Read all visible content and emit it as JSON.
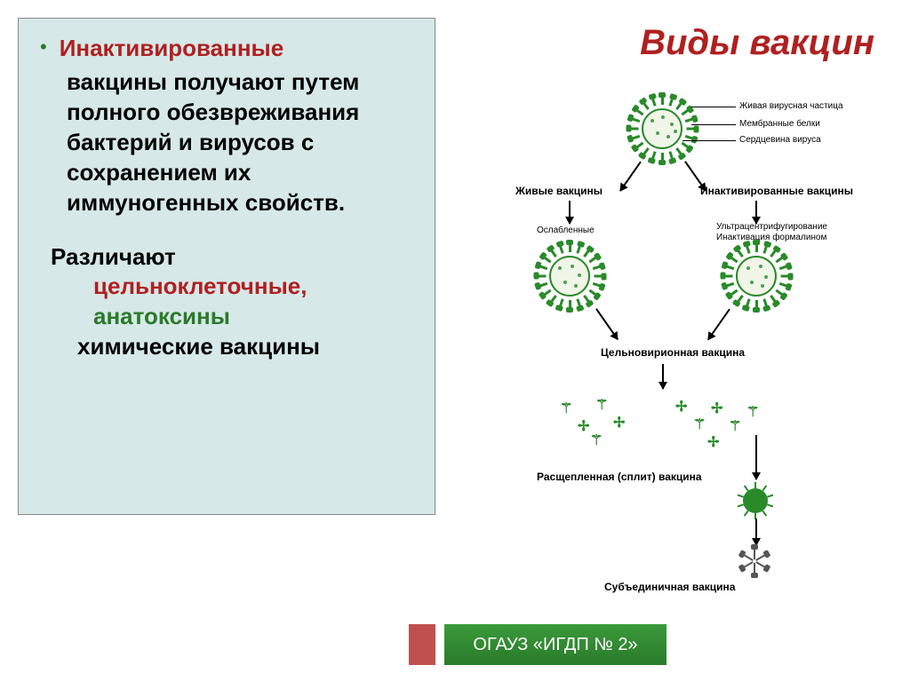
{
  "title": "Виды вакцин",
  "left": {
    "bullet_heading": "Инактивированные",
    "body": "вакцины получают путем полного обезвреживания бактерий и вирусов с сохранением их иммуногенных свойств.",
    "sub_heading": "Различают",
    "items": {
      "a": "цельноклеточные,",
      "b": "анатоксины",
      "c": "химические вакцины"
    }
  },
  "colors": {
    "panel_bg": "#d6e8e8",
    "red": "#b02020",
    "green_dark": "#2a7a2a",
    "green": "#2a8a2a",
    "virus_fill": "#f0f5e8",
    "footer_top": "#3a9a3a",
    "footer_accent": "#c0504d"
  },
  "diagram": {
    "top_labels": {
      "l1": "Живая вирусная частица",
      "l2": "Мембранные белки",
      "l3": "Сердцевина вируса"
    },
    "branches": {
      "left": "Живые вакцины",
      "right": "Инактивированные вакцины",
      "left_sub": "Ослабленные",
      "right_sub1": "Ультрацентрифугирование",
      "right_sub2": "Инактивация формалином"
    },
    "levels": {
      "whole": "Цельновирионная вакцина",
      "split": "Расщепленная (сплит) вакцина",
      "subunit": "Субъединичная вакцина"
    }
  },
  "footer": "ОГАУЗ  «ИГДП № 2»"
}
